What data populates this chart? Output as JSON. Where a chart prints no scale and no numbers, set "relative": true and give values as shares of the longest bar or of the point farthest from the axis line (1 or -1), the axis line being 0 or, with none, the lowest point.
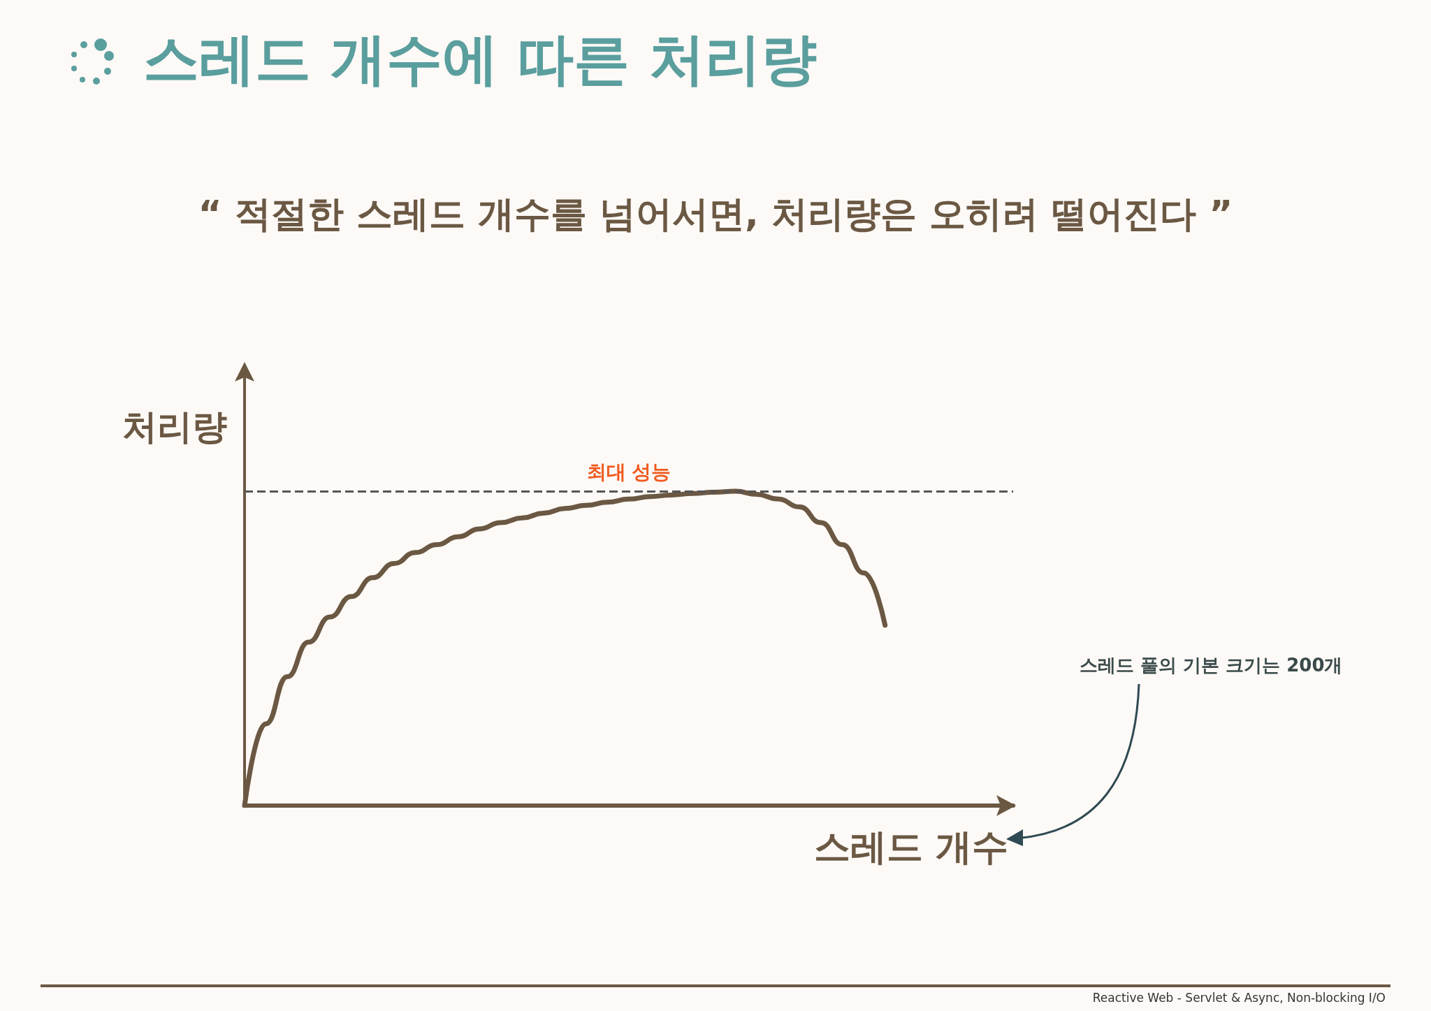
{
  "chart_data": {
    "type": "line",
    "relative": true,
    "title": "스레드 개수에 따른 처리량",
    "subtitle": "“ 적절한 스레드 개수를 넘어서면, 처리량은 오히려 떨어진다 ”",
    "xlabel": "스레드 개수",
    "ylabel": "처리량",
    "categories": [
      null,
      null,
      null,
      null,
      null,
      null,
      null,
      null,
      null,
      null,
      null,
      null,
      null,
      null,
      null,
      null,
      null,
      null,
      null,
      null,
      null,
      null,
      null,
      null,
      null,
      null,
      null,
      null,
      null,
      null,
      null,
      null,
      null,
      null,
      null,
      null,
      null
    ],
    "series": [
      {
        "color": "#6b5843",
        "values": [
          0,
          0.26,
          0.41,
          0.52,
          0.6,
          0.665,
          0.725,
          0.77,
          0.805,
          0.83,
          0.855,
          0.88,
          0.9,
          0.915,
          0.93,
          0.945,
          0.955,
          0.965,
          0.975,
          0.983,
          0.988,
          0.993,
          0.997,
          1,
          0.99,
          0.975,
          0.95,
          0.9,
          0.83,
          0.74,
          0.574,
          null,
          null,
          null,
          null,
          null,
          null
        ]
      }
    ],
    "ref_lines": [
      {
        "axis": "y",
        "value": 1,
        "label": "최대 성능",
        "color": "#555555",
        "line_style": "dashed"
      }
    ],
    "annotations": [
      "스레드 풀의 기본 크기는 200개",
      "Reactive Web - Servlet & Async, Non-blocking I/O"
    ],
    "marker": "none",
    "line_style": "solid",
    "grid": false
  }
}
